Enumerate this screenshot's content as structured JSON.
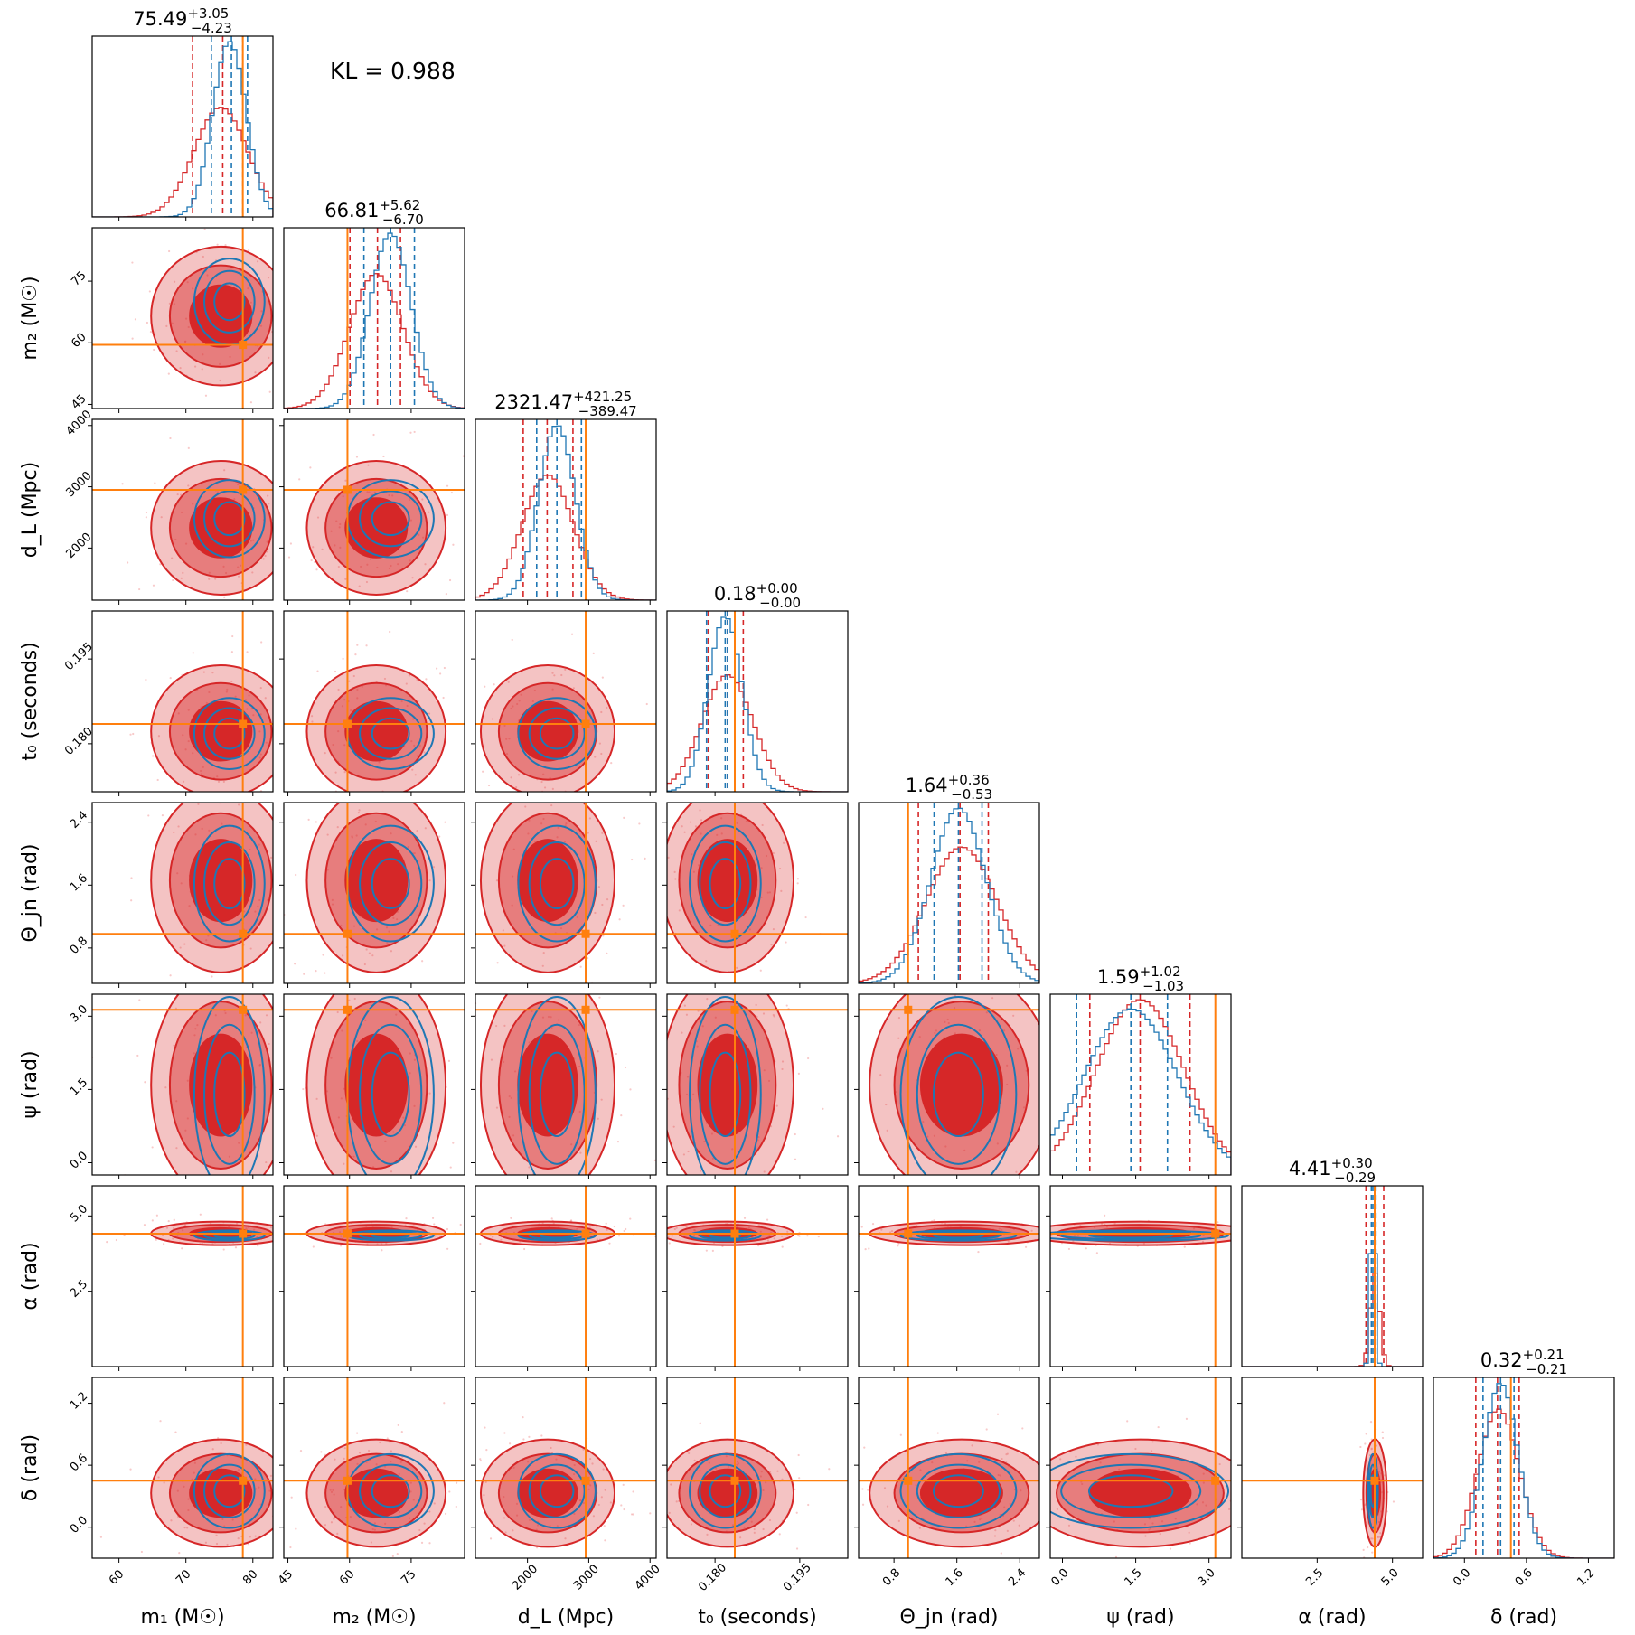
{
  "figure": {
    "kl_text": "KL = 0.988"
  },
  "colors": {
    "red": "#d62728",
    "red_light": "#f3a6a6",
    "blue": "#1f77b4",
    "orange": "#ff7f0e"
  },
  "chart_data": {
    "type": "corner",
    "title": "",
    "annotation": "KL = 0.988",
    "grid": false,
    "legend": "none",
    "parameters": [
      {
        "key": "m1",
        "label": "m₁ (M☉)",
        "range": [
          56,
          83
        ],
        "ticks": [
          60,
          70,
          80
        ],
        "tick_labels": [
          "60",
          "70",
          "80"
        ],
        "median": "75.49",
        "plus": "+3.05",
        "minus": "−4.23",
        "truth": 78.5
      },
      {
        "key": "m2",
        "label": "m₂ (M☉)",
        "range": [
          44,
          88
        ],
        "ticks": [
          45,
          60,
          75
        ],
        "tick_labels": [
          "45",
          "60",
          "75"
        ],
        "median": "66.81",
        "plus": "+5.62",
        "minus": "−6.70",
        "truth": 59.5
      },
      {
        "key": "dL",
        "label": "d_L (Mpc)",
        "range": [
          1150,
          4100
        ],
        "ticks": [
          2000,
          3000,
          4000
        ],
        "tick_labels": [
          "2000",
          "3000",
          "4000"
        ],
        "median": "2321.47",
        "plus": "+421.25",
        "minus": "−389.47",
        "truth": 2950
      },
      {
        "key": "t0",
        "label": "t₀ (seconds)",
        "range": [
          0.1715,
          0.2035
        ],
        "ticks": [
          0.18,
          0.195
        ],
        "tick_labels": [
          "0.180",
          "0.195"
        ],
        "median": "0.18",
        "plus": "+0.00",
        "minus": "−0.00",
        "truth": 0.1835
      },
      {
        "key": "theta_jn",
        "label": "Θ_jn (rad)",
        "range": [
          0.35,
          2.65
        ],
        "ticks": [
          0.8,
          1.6,
          2.4
        ],
        "tick_labels": [
          "0.8",
          "1.6",
          "2.4"
        ],
        "median": "1.64",
        "plus": "+0.36",
        "minus": "−0.53",
        "truth": 0.98
      },
      {
        "key": "psi",
        "label": "ψ (rad)",
        "range": [
          -0.25,
          3.45
        ],
        "ticks": [
          0.0,
          1.5,
          3.0
        ],
        "tick_labels": [
          "0.0",
          "1.5",
          "3.0"
        ],
        "median": "1.59",
        "plus": "+1.02",
        "minus": "−1.03",
        "truth": 3.13
      },
      {
        "key": "alpha",
        "label": "α (rad)",
        "range": [
          0.0,
          6.0
        ],
        "ticks": [
          2.5,
          5.0
        ],
        "tick_labels": [
          "2.5",
          "5.0"
        ],
        "median": "4.41",
        "plus": "+0.30",
        "minus": "−0.29",
        "truth": 4.41
      },
      {
        "key": "delta",
        "label": "δ (rad)",
        "range": [
          -0.3,
          1.45
        ],
        "ticks": [
          0.0,
          0.6,
          1.2
        ],
        "tick_labels": [
          "0.0",
          "0.6",
          "1.2"
        ],
        "median": "0.32",
        "plus": "+0.21",
        "minus": "−0.21",
        "truth": 0.45
      }
    ],
    "series": [
      {
        "color": "#d62728",
        "style": "filled 1σ/2σ/3σ contours + step histograms + dashed quantiles",
        "means": [
          75.2,
          66.5,
          2330,
          0.1822,
          1.66,
          1.59,
          4.42,
          0.33
        ],
        "sds": [
          4.0,
          6.5,
          420,
          0.0045,
          0.45,
          0.9,
          0.15,
          0.2
        ],
        "quantiles": [
          [
            71.0,
            75.5,
            78.5
          ],
          [
            60.1,
            66.8,
            72.4
          ],
          [
            1930,
            2321,
            2742
          ],
          [
            0.1788,
            0.1822,
            0.185
          ],
          [
            1.11,
            1.64,
            2.0
          ],
          [
            0.56,
            1.59,
            2.61
          ],
          [
            4.12,
            4.41,
            4.71
          ],
          [
            0.11,
            0.32,
            0.53
          ]
        ]
      },
      {
        "color": "#1f77b4",
        "style": "line contours + step histograms + dashed quantiles",
        "means": [
          76.5,
          70.0,
          2480,
          0.1818,
          1.62,
          1.4,
          4.35,
          0.35
        ],
        "sds": [
          2.5,
          5.0,
          300,
          0.003,
          0.35,
          0.95,
          0.08,
          0.17
        ],
        "quantiles": [
          [
            73.8,
            76.8,
            79.2
          ],
          [
            63.5,
            70.0,
            75.8
          ],
          [
            2150,
            2480,
            2880
          ],
          [
            0.1785,
            0.1818,
            0.1822
          ],
          [
            1.31,
            1.62,
            1.92
          ],
          [
            0.29,
            1.4,
            2.15
          ],
          [
            4.3,
            4.35,
            4.42
          ],
          [
            0.18,
            0.35,
            0.48
          ]
        ]
      }
    ]
  }
}
